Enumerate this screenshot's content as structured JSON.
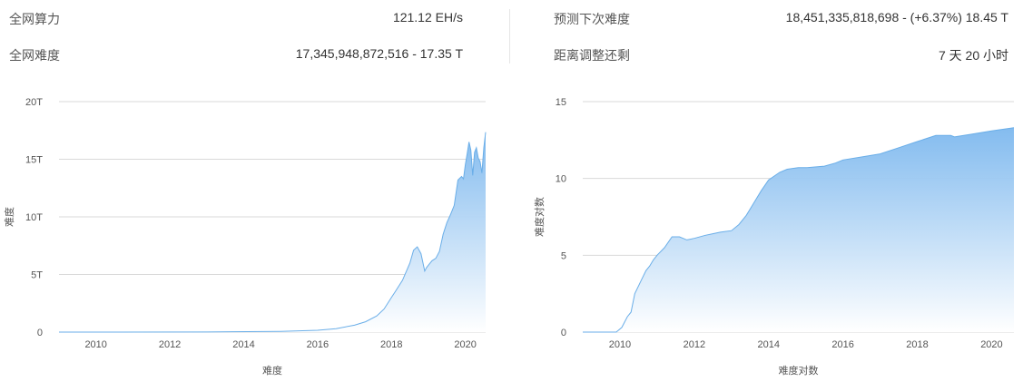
{
  "stats": {
    "left": [
      {
        "label": "全网算力",
        "value": "121.12 EH/s"
      },
      {
        "label": "全网难度",
        "value": "17,345,948,872,516 - 17.35 T"
      }
    ],
    "right": [
      {
        "label": "预测下次难度",
        "value": "18,451,335,818,698 - (+6.37%) 18.45 T"
      },
      {
        "label": "距离调整还剩",
        "value": "7 天 20 小时"
      }
    ]
  },
  "colors": {
    "line": "#6aaee8",
    "fill_top": "#7db8ee",
    "fill_bottom": "#ffffff",
    "grid": "#d9d9d9"
  },
  "chart_data": [
    {
      "type": "area",
      "title": "",
      "xlabel": "难度",
      "ylabel": "难度",
      "xlim": [
        2009.0,
        2020.55
      ],
      "ylim": [
        0,
        20
      ],
      "y_ticks": [
        0,
        5,
        10,
        15,
        20
      ],
      "y_tick_labels": [
        "0",
        "5T",
        "10T",
        "15T",
        "20T"
      ],
      "x_ticks": [
        2010,
        2012,
        2014,
        2016,
        2018,
        2020
      ],
      "x_tick_labels": [
        "2010",
        "2012",
        "2014",
        "2016",
        "2018",
        "2020"
      ],
      "grid": true,
      "x": [
        2009.0,
        2013.0,
        2015.0,
        2016.0,
        2016.5,
        2017.0,
        2017.3,
        2017.6,
        2017.8,
        2018.0,
        2018.1,
        2018.3,
        2018.5,
        2018.6,
        2018.7,
        2018.8,
        2018.9,
        2018.95,
        2019.0,
        2019.1,
        2019.2,
        2019.3,
        2019.4,
        2019.5,
        2019.6,
        2019.7,
        2019.8,
        2019.9,
        2019.95,
        2020.0,
        2020.05,
        2020.1,
        2020.15,
        2020.2,
        2020.25,
        2020.3,
        2020.35,
        2020.4,
        2020.45,
        2020.5,
        2020.55
      ],
      "values": [
        0.0,
        0.01,
        0.06,
        0.16,
        0.3,
        0.6,
        0.9,
        1.4,
        2.0,
        3.0,
        3.5,
        4.5,
        6.0,
        7.1,
        7.4,
        6.8,
        5.3,
        5.6,
        5.8,
        6.2,
        6.4,
        7.0,
        8.5,
        9.5,
        10.2,
        11.0,
        13.2,
        13.5,
        13.3,
        14.5,
        15.5,
        16.5,
        15.8,
        13.6,
        15.6,
        16.0,
        15.1,
        14.8,
        13.8,
        16.0,
        17.35
      ]
    },
    {
      "type": "area",
      "title": "",
      "xlabel": "难度对数",
      "ylabel": "难度对数",
      "xlim": [
        2009.0,
        2020.6
      ],
      "ylim": [
        0,
        15
      ],
      "y_ticks": [
        0,
        5,
        10,
        15
      ],
      "y_tick_labels": [
        "0",
        "5",
        "10",
        "15"
      ],
      "x_ticks": [
        2010,
        2012,
        2014,
        2016,
        2018,
        2020
      ],
      "x_tick_labels": [
        "2010",
        "2012",
        "2014",
        "2016",
        "2018",
        "2020"
      ],
      "grid": true,
      "x": [
        2009.0,
        2009.9,
        2010.05,
        2010.2,
        2010.3,
        2010.4,
        2010.5,
        2010.6,
        2010.7,
        2010.8,
        2010.9,
        2011.0,
        2011.2,
        2011.4,
        2011.6,
        2011.8,
        2012.0,
        2012.3,
        2012.5,
        2012.7,
        2013.0,
        2013.2,
        2013.4,
        2013.6,
        2013.8,
        2014.0,
        2014.3,
        2014.5,
        2014.8,
        2015.0,
        2015.5,
        2015.8,
        2016.0,
        2016.5,
        2017.0,
        2017.5,
        2018.0,
        2018.5,
        2018.9,
        2019.0,
        2019.5,
        2020.0,
        2020.3,
        2020.6
      ],
      "values": [
        0.0,
        0.0,
        0.3,
        1.0,
        1.3,
        2.5,
        3.0,
        3.5,
        4.0,
        4.3,
        4.7,
        5.0,
        5.5,
        6.2,
        6.2,
        6.0,
        6.1,
        6.3,
        6.4,
        6.5,
        6.6,
        7.0,
        7.6,
        8.4,
        9.2,
        9.9,
        10.4,
        10.6,
        10.7,
        10.7,
        10.8,
        11.0,
        11.2,
        11.4,
        11.6,
        12.0,
        12.4,
        12.8,
        12.8,
        12.7,
        12.9,
        13.1,
        13.2,
        13.3
      ]
    }
  ]
}
